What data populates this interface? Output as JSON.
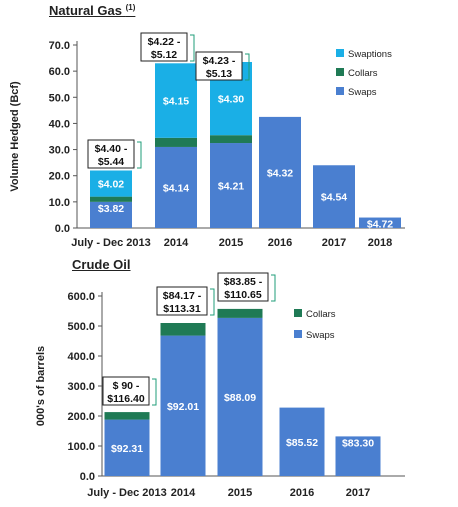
{
  "colors": {
    "swaps": "#4a7fd0",
    "collars": "#1f7a55",
    "swaptions": "#1aafe6",
    "text": "#222222",
    "bracket": "#1f9e78"
  },
  "charts": [
    {
      "id": "gas",
      "title": "Natural Gas",
      "title_sup": "(1)",
      "ylabel": "Volume Hedged (Bcf)",
      "tick_labels": [
        "0.0",
        "10.0",
        "20.0",
        "30.0",
        "40.0",
        "50.0",
        "60.0",
        "70.0"
      ],
      "legend": [
        "Swaptions",
        "Collars",
        "Swaps"
      ],
      "categories": [
        "July - Dec 2013",
        "2014",
        "2015",
        "2016",
        "2017",
        "2018"
      ],
      "data_labels": {
        "swaps": [
          "$3.82",
          "$4.14",
          "$4.21",
          "$4.32",
          "$4.54",
          "$4.72"
        ],
        "swaptions": [
          "$4.02",
          "$4.15",
          "$4.30",
          "",
          "",
          ""
        ]
      },
      "collar_labels": [
        [
          "$4.40 -",
          "$5.44"
        ],
        [
          "$4.22 -",
          "$5.12"
        ],
        [
          "$4.23 -",
          "$5.13"
        ]
      ]
    },
    {
      "id": "oil",
      "title": "Crude Oil",
      "ylabel": "000's of barrels",
      "tick_labels": [
        "0.0",
        "100.0",
        "200.0",
        "300.0",
        "400.0",
        "500.0",
        "600.0"
      ],
      "legend": [
        "Collars",
        "Swaps"
      ],
      "categories": [
        "July - Dec 2013",
        "2014",
        "2015",
        "2016",
        "2017"
      ],
      "data_labels": {
        "swaps": [
          "$92.31",
          "$92.01",
          "$88.09",
          "$85.52",
          "$83.30"
        ]
      },
      "collar_labels": [
        [
          "$ 90 -",
          "$116.40"
        ],
        [
          "$84.17 -",
          "$113.31"
        ],
        [
          "$83.85 -",
          "$110.65"
        ]
      ]
    }
  ],
  "chart_data": [
    {
      "type": "bar",
      "stacked": true,
      "title": "Natural Gas (1)",
      "ylabel": "Volume Hedged (Bcf)",
      "ylim": [
        0,
        70
      ],
      "categories": [
        "July - Dec 2013",
        "2014",
        "2015",
        "2016",
        "2017",
        "2018"
      ],
      "series": [
        {
          "name": "Swaps",
          "values": [
            10,
            31,
            32.5,
            42.5,
            24,
            4
          ]
        },
        {
          "name": "Collars",
          "values": [
            2,
            3.5,
            3,
            0,
            0,
            0
          ]
        },
        {
          "name": "Swaptions",
          "values": [
            10,
            28.5,
            28,
            0,
            0,
            0
          ]
        }
      ],
      "legend_position": "top-right"
    },
    {
      "type": "bar",
      "stacked": true,
      "title": "Crude Oil",
      "ylabel": "000's of barrels",
      "ylim": [
        0,
        600
      ],
      "categories": [
        "July - Dec 2013",
        "2014",
        "2015",
        "2016",
        "2017"
      ],
      "series": [
        {
          "name": "Swaps",
          "values": [
            188,
            468,
            527,
            228,
            132
          ]
        },
        {
          "name": "Collars",
          "values": [
            25,
            42,
            30,
            0,
            0
          ]
        }
      ],
      "legend_position": "top-right"
    }
  ]
}
